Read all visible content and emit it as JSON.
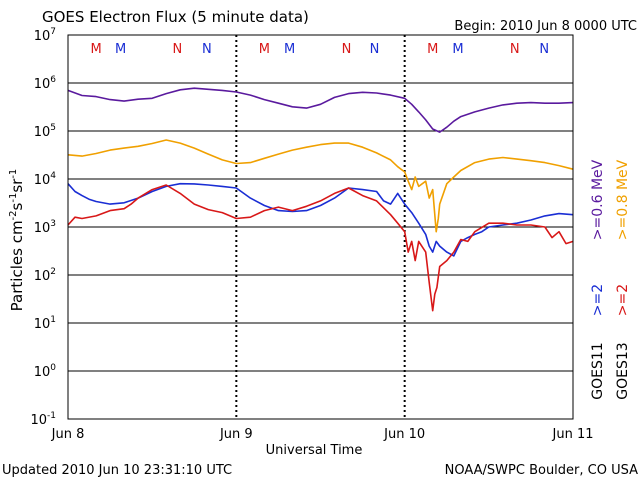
{
  "header": {
    "title": "GOES Electron Flux (5 minute data)",
    "begin": "Begin: 2010 Jun 8 0000 UTC"
  },
  "footer": {
    "updated": "Updated 2010 Jun 10 23:31:10 UTC",
    "credit": "NOAA/SWPC Boulder, CO USA"
  },
  "colors": {
    "purple": "#5a1a9e",
    "orange": "#f0a000",
    "blue": "#1a2ed4",
    "red": "#d81818",
    "frame": "#000000"
  },
  "chart_data": {
    "type": "line",
    "title": "GOES Electron Flux (5 minute data)",
    "xlabel": "Universal Time",
    "ylabel_base": "Particles cm",
    "ylabel_sup1": "-2",
    "ylabel_mid1": "s",
    "ylabel_sup2": "-1",
    "ylabel_mid2": "sr",
    "ylabel_sup3": "-1",
    "yscale": "log",
    "ylim": [
      0.1,
      10000000
    ],
    "xlim": [
      0,
      72
    ],
    "x_unit": "hours since 2010 Jun 8 0000 UTC",
    "x_ticks": [
      {
        "x": 0,
        "label": "Jun 8"
      },
      {
        "x": 24,
        "label": "Jun 9"
      },
      {
        "x": 48,
        "label": "Jun 10"
      },
      {
        "x": 72,
        "label": "Jun 11"
      }
    ],
    "y_ticks": [
      {
        "exp": 7
      },
      {
        "exp": 6
      },
      {
        "exp": 5
      },
      {
        "exp": 4
      },
      {
        "exp": 3
      },
      {
        "exp": 2
      },
      {
        "exp": 1
      },
      {
        "exp": 0
      },
      {
        "exp": -1
      }
    ],
    "grid": "horizontal at each decade",
    "threshold_line": 1000,
    "mn_markers": [
      {
        "x": 4.0,
        "label": "M",
        "color": "red"
      },
      {
        "x": 7.5,
        "label": "M",
        "color": "blue"
      },
      {
        "x": 15.6,
        "label": "N",
        "color": "red"
      },
      {
        "x": 19.8,
        "label": "N",
        "color": "blue"
      },
      {
        "x": 28.0,
        "label": "M",
        "color": "red"
      },
      {
        "x": 31.6,
        "label": "M",
        "color": "blue"
      },
      {
        "x": 39.7,
        "label": "N",
        "color": "red"
      },
      {
        "x": 43.7,
        "label": "N",
        "color": "blue"
      },
      {
        "x": 52.0,
        "label": "M",
        "color": "red"
      },
      {
        "x": 55.6,
        "label": "M",
        "color": "blue"
      },
      {
        "x": 63.7,
        "label": "N",
        "color": "red"
      },
      {
        "x": 67.9,
        "label": "N",
        "color": "blue"
      }
    ],
    "legend_groups": [
      {
        "items": [
          {
            "label": ">=0.6 MeV",
            "color": "purple"
          },
          {
            "label": ">=0.8 MeV",
            "color": "orange"
          }
        ]
      },
      {
        "items": [
          {
            "label": ">=2",
            "color": "blue"
          },
          {
            "label": ">=2",
            "color": "red"
          }
        ]
      },
      {
        "items": [
          {
            "label": "GOES11",
            "color": "frame"
          },
          {
            "label": "GOES13",
            "color": "frame"
          }
        ]
      }
    ],
    "series": [
      {
        "color": "purple",
        "points": [
          [
            0,
            700000
          ],
          [
            2,
            550000
          ],
          [
            4,
            520000
          ],
          [
            6,
            450000
          ],
          [
            8,
            420000
          ],
          [
            10,
            460000
          ],
          [
            12,
            480000
          ],
          [
            14,
            600000
          ],
          [
            16,
            720000
          ],
          [
            18,
            780000
          ],
          [
            20,
            740000
          ],
          [
            22,
            700000
          ],
          [
            24,
            650000
          ],
          [
            26,
            560000
          ],
          [
            28,
            450000
          ],
          [
            30,
            380000
          ],
          [
            32,
            320000
          ],
          [
            34,
            300000
          ],
          [
            36,
            360000
          ],
          [
            38,
            500000
          ],
          [
            40,
            600000
          ],
          [
            42,
            640000
          ],
          [
            44,
            620000
          ],
          [
            46,
            560000
          ],
          [
            48,
            480000
          ],
          [
            49,
            360000
          ],
          [
            50,
            250000
          ],
          [
            51,
            170000
          ],
          [
            52,
            110000
          ],
          [
            53,
            95000
          ],
          [
            54,
            120000
          ],
          [
            55,
            160000
          ],
          [
            56,
            200000
          ],
          [
            58,
            250000
          ],
          [
            60,
            300000
          ],
          [
            62,
            350000
          ],
          [
            64,
            380000
          ],
          [
            66,
            390000
          ],
          [
            68,
            380000
          ],
          [
            70,
            380000
          ],
          [
            72,
            390000
          ]
        ]
      },
      {
        "color": "orange",
        "points": [
          [
            0,
            32000
          ],
          [
            2,
            30000
          ],
          [
            4,
            34000
          ],
          [
            6,
            40000
          ],
          [
            8,
            44000
          ],
          [
            10,
            48000
          ],
          [
            12,
            55000
          ],
          [
            14,
            65000
          ],
          [
            16,
            56000
          ],
          [
            18,
            44000
          ],
          [
            20,
            33000
          ],
          [
            22,
            25000
          ],
          [
            24,
            21000
          ],
          [
            26,
            22000
          ],
          [
            28,
            27000
          ],
          [
            30,
            33000
          ],
          [
            32,
            40000
          ],
          [
            34,
            46000
          ],
          [
            36,
            52000
          ],
          [
            38,
            56000
          ],
          [
            40,
            56000
          ],
          [
            42,
            46000
          ],
          [
            44,
            35000
          ],
          [
            46,
            25000
          ],
          [
            47,
            18000
          ],
          [
            48,
            14000
          ],
          [
            48.5,
            9000
          ],
          [
            49,
            6000
          ],
          [
            49.5,
            11000
          ],
          [
            50,
            7000
          ],
          [
            51,
            9000
          ],
          [
            51.5,
            4000
          ],
          [
            52,
            6000
          ],
          [
            52.5,
            800
          ],
          [
            52.8,
            1500
          ],
          [
            53,
            3000
          ],
          [
            54,
            8000
          ],
          [
            55,
            11000
          ],
          [
            56,
            15000
          ],
          [
            58,
            22000
          ],
          [
            60,
            26000
          ],
          [
            62,
            28000
          ],
          [
            64,
            26000
          ],
          [
            66,
            24000
          ],
          [
            68,
            22000
          ],
          [
            70,
            19000
          ],
          [
            72,
            16000
          ]
        ]
      },
      {
        "color": "blue",
        "points": [
          [
            0,
            8000
          ],
          [
            1,
            5500
          ],
          [
            2,
            4500
          ],
          [
            3,
            3800
          ],
          [
            4,
            3400
          ],
          [
            6,
            3000
          ],
          [
            8,
            3200
          ],
          [
            10,
            4000
          ],
          [
            12,
            5500
          ],
          [
            14,
            7000
          ],
          [
            16,
            8000
          ],
          [
            18,
            7900
          ],
          [
            20,
            7500
          ],
          [
            22,
            7000
          ],
          [
            24,
            6500
          ],
          [
            26,
            4000
          ],
          [
            28,
            2800
          ],
          [
            30,
            2200
          ],
          [
            32,
            2100
          ],
          [
            34,
            2200
          ],
          [
            36,
            2800
          ],
          [
            38,
            4000
          ],
          [
            40,
            6500
          ],
          [
            42,
            6000
          ],
          [
            44,
            5500
          ],
          [
            45,
            3500
          ],
          [
            46,
            3000
          ],
          [
            47,
            5000
          ],
          [
            48,
            3000
          ],
          [
            49,
            2000
          ],
          [
            50,
            1200
          ],
          [
            51,
            700
          ],
          [
            51.5,
            400
          ],
          [
            52,
            300
          ],
          [
            52.5,
            500
          ],
          [
            53,
            400
          ],
          [
            54,
            300
          ],
          [
            55,
            250
          ],
          [
            56,
            500
          ],
          [
            57,
            600
          ],
          [
            58,
            700
          ],
          [
            59,
            800
          ],
          [
            60,
            1000
          ],
          [
            62,
            1100
          ],
          [
            64,
            1200
          ],
          [
            66,
            1400
          ],
          [
            68,
            1700
          ],
          [
            70,
            1900
          ],
          [
            72,
            1800
          ]
        ]
      },
      {
        "color": "red",
        "points": [
          [
            0,
            1100
          ],
          [
            1,
            1600
          ],
          [
            2,
            1500
          ],
          [
            4,
            1700
          ],
          [
            6,
            2200
          ],
          [
            8,
            2400
          ],
          [
            9,
            3000
          ],
          [
            10,
            4000
          ],
          [
            12,
            6000
          ],
          [
            14,
            7500
          ],
          [
            16,
            5000
          ],
          [
            18,
            3000
          ],
          [
            20,
            2300
          ],
          [
            22,
            2000
          ],
          [
            24,
            1500
          ],
          [
            26,
            1600
          ],
          [
            28,
            2200
          ],
          [
            30,
            2600
          ],
          [
            32,
            2200
          ],
          [
            34,
            2700
          ],
          [
            36,
            3500
          ],
          [
            38,
            5000
          ],
          [
            40,
            6500
          ],
          [
            42,
            4500
          ],
          [
            44,
            3500
          ],
          [
            46,
            1800
          ],
          [
            47,
            1200
          ],
          [
            48,
            800
          ],
          [
            48.5,
            300
          ],
          [
            49,
            500
          ],
          [
            49.5,
            200
          ],
          [
            50,
            500
          ],
          [
            51,
            300
          ],
          [
            51.5,
            70
          ],
          [
            52,
            18
          ],
          [
            52.3,
            40
          ],
          [
            52.6,
            55
          ],
          [
            53,
            150
          ],
          [
            54,
            200
          ],
          [
            55,
            300
          ],
          [
            56,
            550
          ],
          [
            57,
            500
          ],
          [
            58,
            800
          ],
          [
            60,
            1200
          ],
          [
            62,
            1200
          ],
          [
            64,
            1100
          ],
          [
            66,
            1100
          ],
          [
            68,
            1000
          ],
          [
            69,
            600
          ],
          [
            70,
            800
          ],
          [
            71,
            450
          ],
          [
            72,
            500
          ]
        ]
      }
    ]
  }
}
